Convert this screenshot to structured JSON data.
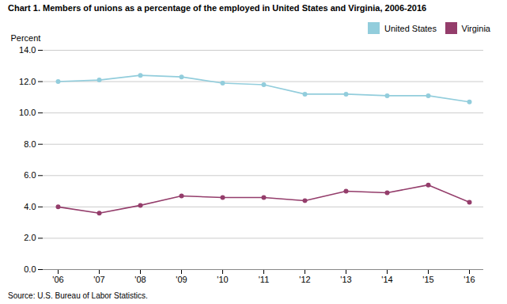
{
  "chart_data": {
    "type": "line",
    "title": "Chart 1. Members of unions as a percentage of the employed in United States and Virginia, 2006-2016",
    "ylabel": "Percent",
    "source": "Source: U.S. Bureau of Labor Statistics.",
    "categories": [
      "'06",
      "'07",
      "'08",
      "'09",
      "'10",
      "'11",
      "'12",
      "'13",
      "'14",
      "'15",
      "'16"
    ],
    "series": [
      {
        "name": "United States",
        "color": "#92CDDC",
        "marker": "circle",
        "values": [
          12.0,
          12.1,
          12.4,
          12.3,
          11.9,
          11.8,
          11.2,
          11.2,
          11.1,
          11.1,
          10.7
        ]
      },
      {
        "name": "Virginia",
        "color": "#943D6B",
        "marker": "circle",
        "values": [
          4.0,
          3.6,
          4.1,
          4.7,
          4.6,
          4.6,
          4.4,
          5.0,
          4.9,
          5.4,
          4.3
        ]
      }
    ],
    "ylim": [
      0.0,
      14.0
    ],
    "yticks": [
      {
        "value": 0.0,
        "label": "0.0"
      },
      {
        "value": 2.0,
        "label": "2.0"
      },
      {
        "value": 4.0,
        "label": "4.0"
      },
      {
        "value": 6.0,
        "label": "6.0"
      },
      {
        "value": 8.0,
        "label": "8.0"
      },
      {
        "value": 10.0,
        "label": "10.0"
      },
      {
        "value": 12.0,
        "label": "12.0"
      },
      {
        "value": 14.0,
        "label": "14.0"
      }
    ],
    "grid": true,
    "legend": "upper right"
  }
}
